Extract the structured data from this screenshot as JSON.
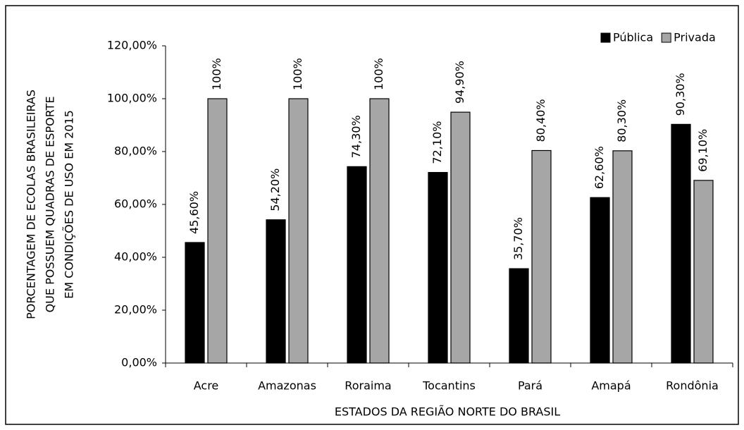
{
  "chart_data": {
    "type": "bar",
    "y_label": [
      "PORCENTAGEM DE ECOLAS BRASILEIRAS",
      "QUE POSSUEM QUADRAS DE ESPORTE",
      "EM CONDIÇÕES DE USO EM 2015"
    ],
    "x_label": "ESTADOS DA REGIÃO NORTE DO BRASIL",
    "categories": [
      "Acre",
      "Amazonas",
      "Roraima",
      "Tocantins",
      "Pará",
      "Amapá",
      "Rondônia"
    ],
    "series": [
      {
        "name": "Pública",
        "color": "#000000",
        "values": [
          45.6,
          54.2,
          74.3,
          72.1,
          35.7,
          62.6,
          90.3
        ],
        "value_labels": [
          "45,60%",
          "54,20%",
          "74,30%",
          "72,10%",
          "35,70%",
          "62,60%",
          "90,30%"
        ]
      },
      {
        "name": "Privada",
        "color": "#a6a6a6",
        "values": [
          100,
          100,
          100,
          94.9,
          80.4,
          80.3,
          69.1
        ],
        "value_labels": [
          "100%",
          "100%",
          "100%",
          "94,90%",
          "80,40%",
          "80,30%",
          "69,10%"
        ]
      }
    ],
    "ylim": [
      0,
      120
    ],
    "yticks": [
      {
        "value": 0,
        "label": "0,00%"
      },
      {
        "value": 20,
        "label": "20,00%"
      },
      {
        "value": 40,
        "label": "40,00%"
      },
      {
        "value": 60,
        "label": "60,00%"
      },
      {
        "value": 80,
        "label": "80,00%"
      },
      {
        "value": 100,
        "label": "100,00%"
      },
      {
        "value": 120,
        "label": "120,00%"
      }
    ],
    "grid": false,
    "legend": "top-right"
  }
}
